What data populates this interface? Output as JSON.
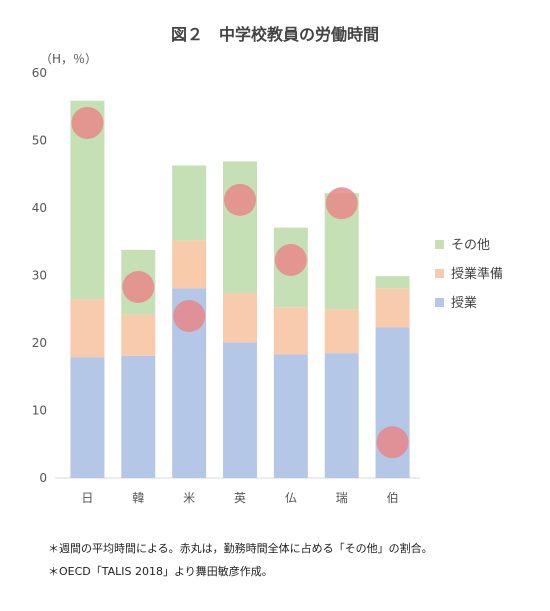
{
  "chart_data": {
    "type": "bar",
    "stacked": true,
    "title": "図２　中学校教員の労働時間",
    "unit_label": "（H，％）",
    "categories": [
      "日",
      "韓",
      "米",
      "英",
      "仏",
      "瑞",
      "伯"
    ],
    "ylim": [
      0,
      60
    ],
    "yticks": [
      0,
      10,
      20,
      30,
      40,
      50,
      60
    ],
    "grid": false,
    "legend_position": "right",
    "series": [
      {
        "name": "授業",
        "color": "#b4c7e7",
        "values": [
          17.9,
          18.1,
          28.1,
          20.1,
          18.3,
          18.5,
          22.3
        ]
      },
      {
        "name": "授業準備",
        "color": "#f8cbad",
        "values": [
          8.6,
          6.1,
          7.1,
          7.3,
          7.0,
          6.5,
          5.8
        ]
      },
      {
        "name": "その他",
        "color": "#c5e0b4",
        "values": [
          29.4,
          9.6,
          11.1,
          19.5,
          11.8,
          17.2,
          1.8
        ]
      }
    ],
    "markers": {
      "color": "#e8878a",
      "values": [
        52.6,
        28.3,
        24.0,
        41.2,
        32.3,
        40.7,
        5.3
      ]
    }
  },
  "notes": [
    "＊週間の平均時間による。赤丸は，勤務時間全体に占める「その他」の割合。",
    "＊OECD「TALIS 2018」より舞田敏彦作成。"
  ]
}
